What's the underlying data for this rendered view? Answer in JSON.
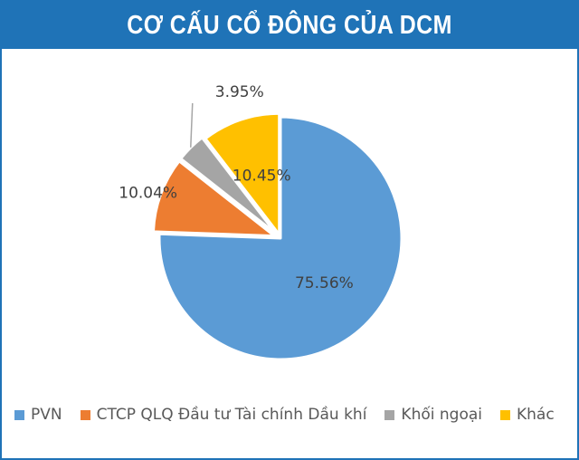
{
  "header": {
    "title": "CƠ CẤU CỔ ĐÔNG CỦA DCM"
  },
  "chart_data": {
    "type": "pie",
    "title": "CƠ CẤU CỔ ĐÔNG CỦA DCM",
    "legend_position": "bottom",
    "slices": [
      {
        "label": "PVN",
        "value": 75.56,
        "display": "75.56%",
        "color": "#5b9bd5"
      },
      {
        "label": "CTCP QLQ Đầu tư Tài chính Dầu khí",
        "value": 10.04,
        "display": "10.04%",
        "color": "#ed7d31"
      },
      {
        "label": "Khối ngoại",
        "value": 3.95,
        "display": "3.95%",
        "color": "#a5a5a5"
      },
      {
        "label": "Khác",
        "value": 10.45,
        "display": "10.45%",
        "color": "#ffc000"
      }
    ]
  }
}
